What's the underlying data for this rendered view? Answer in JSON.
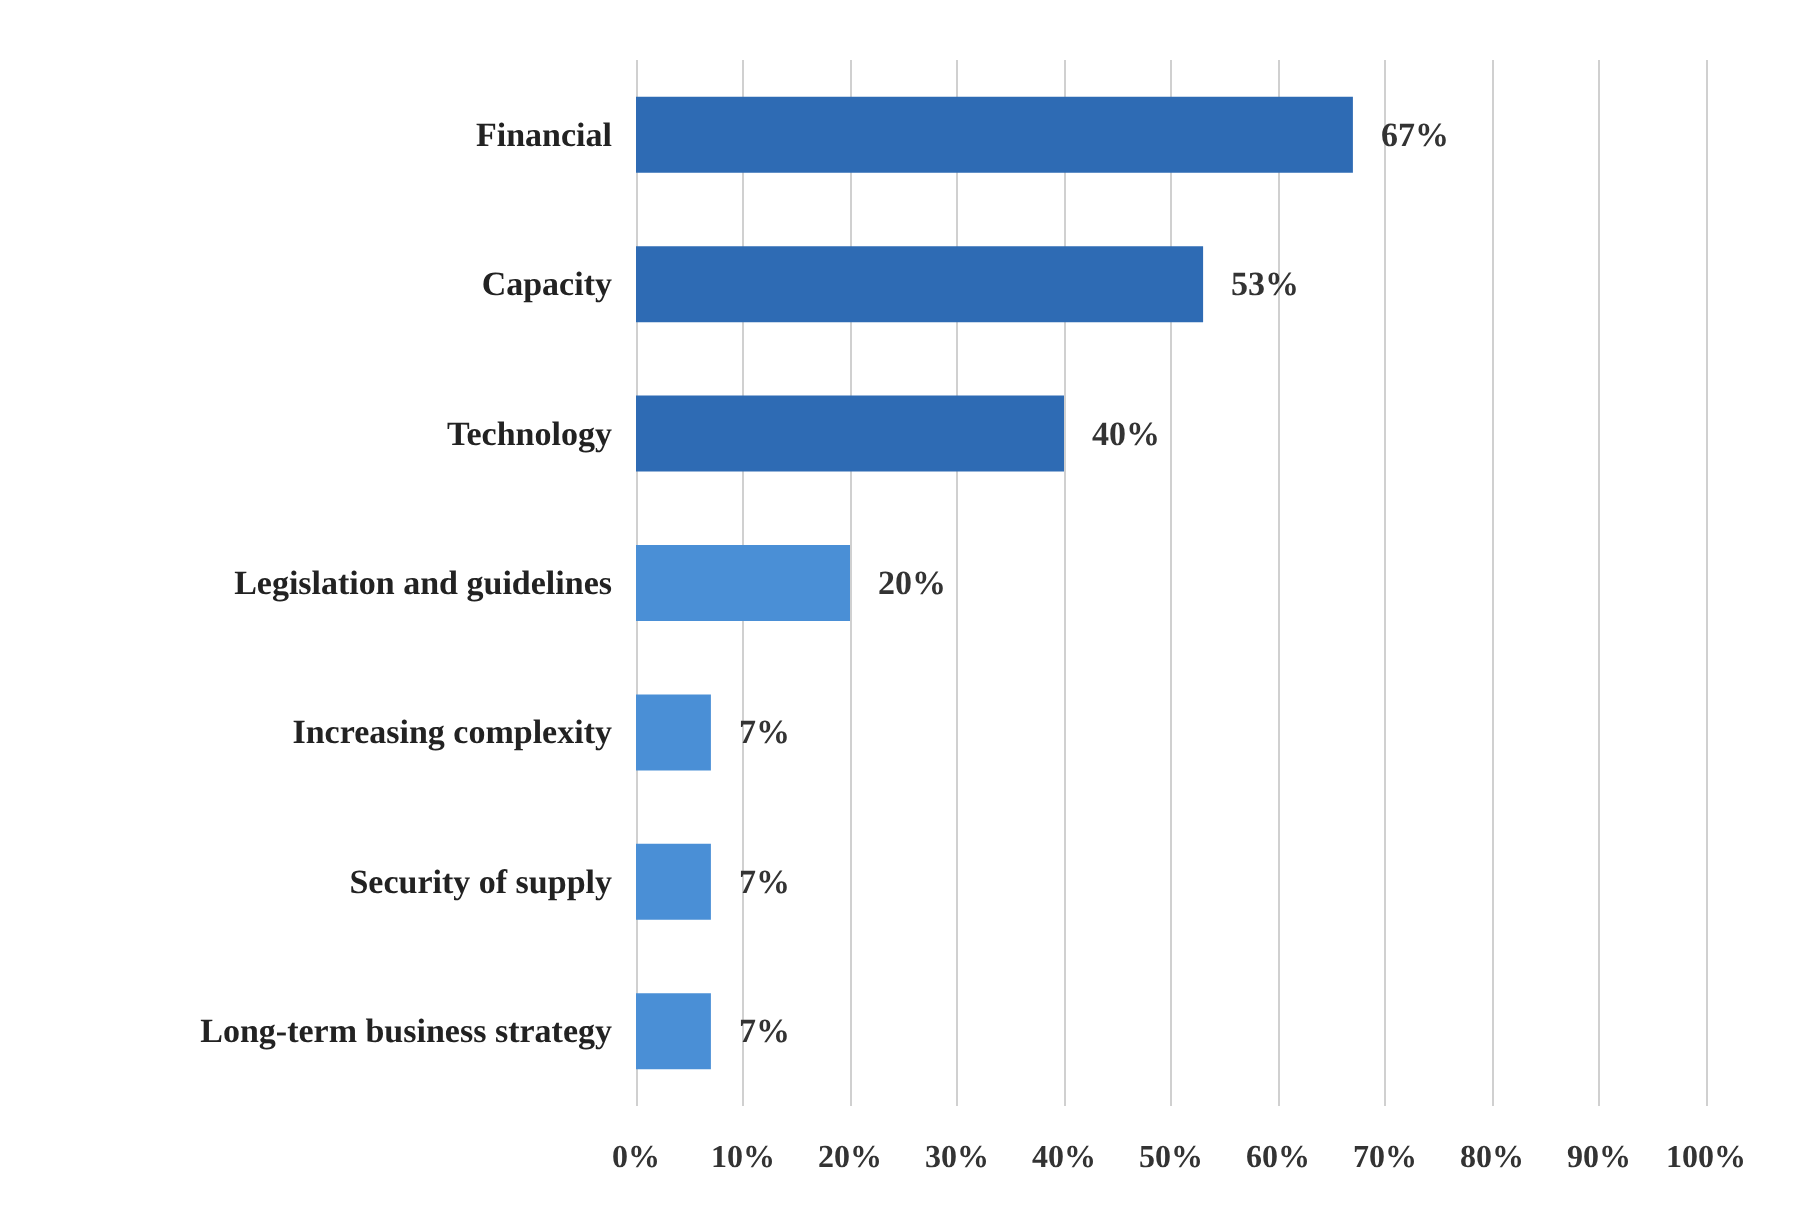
{
  "chart_data": {
    "type": "bar",
    "orientation": "horizontal",
    "categories": [
      "Financial",
      "Capacity",
      "Technology",
      "Legislation and guidelines",
      "Increasing complexity",
      "Security of supply",
      "Long-term business strategy"
    ],
    "values": [
      67,
      53,
      40,
      20,
      7,
      7,
      7
    ],
    "colors": [
      "#2e6bb4",
      "#2e6bb4",
      "#2e6bb4",
      "#4a8fd6",
      "#4a8fd6",
      "#4a8fd6",
      "#4a8fd6"
    ],
    "value_labels": [
      "67%",
      "53%",
      "40%",
      "20%",
      "7%",
      "7%",
      "7%"
    ],
    "xlim": [
      0,
      100
    ],
    "xticks": [
      {
        "value": 0,
        "label": "0%"
      },
      {
        "value": 10,
        "label": "10%"
      },
      {
        "value": 20,
        "label": "20%"
      },
      {
        "value": 30,
        "label": "30%"
      },
      {
        "value": 40,
        "label": "40%"
      },
      {
        "value": 50,
        "label": "50%"
      },
      {
        "value": 60,
        "label": "60%"
      },
      {
        "value": 70,
        "label": "70%"
      },
      {
        "value": 80,
        "label": "80%"
      },
      {
        "value": 90,
        "label": "90%"
      },
      {
        "value": 100,
        "label": "100%"
      }
    ],
    "grid": "x"
  }
}
